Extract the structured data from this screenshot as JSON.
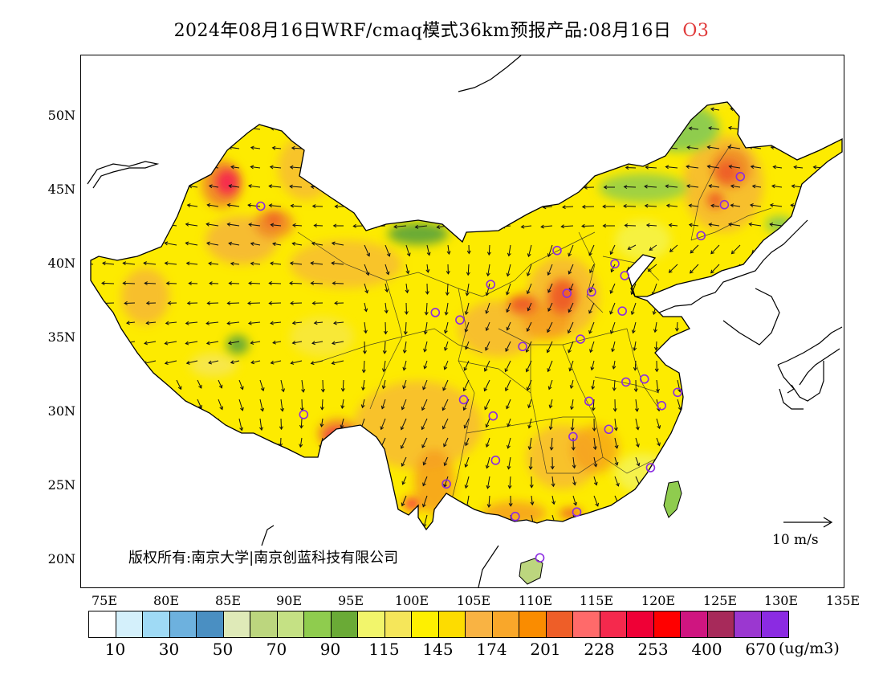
{
  "title": {
    "main": "2024年08月16日WRF/cmaq模式36km预报产品:08月16日",
    "species": "O3"
  },
  "axes": {
    "lat_labels": [
      "50N",
      "45N",
      "40N",
      "35N",
      "30N",
      "25N",
      "20N"
    ],
    "lon_labels": [
      "75E",
      "80E",
      "85E",
      "90E",
      "95E",
      "100E",
      "105E",
      "110E",
      "115E",
      "120E",
      "125E",
      "130E",
      "135E"
    ]
  },
  "map_view": {
    "lon_min": 73,
    "lon_max": 135,
    "lat_min": 18,
    "lat_max": 54
  },
  "copyright": "版权所有:南京大学|南京创蓝科技有限公司",
  "wind_reference": "10 m/s",
  "legend": {
    "colors": [
      "#ffffff",
      "#d4f0fb",
      "#9fdaf5",
      "#6db1de",
      "#4a8fc2",
      "#dfeab8",
      "#bcd67e",
      "#c5e184",
      "#8fcc4e",
      "#6aaa36",
      "#f2f56b",
      "#f5e65a",
      "#fef000",
      "#fddc00",
      "#f9b343",
      "#f9a72a",
      "#fa8c00",
      "#ee5e28",
      "#ff6a6a",
      "#f5294d",
      "#ef0036",
      "#ff0000",
      "#cf1580",
      "#a72a5a",
      "#9b37d0",
      "#8b2be2"
    ],
    "tick_labels": [
      "10",
      "30",
      "50",
      "70",
      "90",
      "115",
      "145",
      "174",
      "201",
      "228",
      "253",
      "400",
      "670"
    ],
    "unit": "(ug/m3)"
  },
  "stations": [
    {
      "lon": 87.6,
      "lat": 43.8
    },
    {
      "lon": 91.1,
      "lat": 29.7
    },
    {
      "lon": 101.8,
      "lat": 36.6
    },
    {
      "lon": 103.8,
      "lat": 36.1
    },
    {
      "lon": 106.3,
      "lat": 38.5
    },
    {
      "lon": 111.7,
      "lat": 40.8
    },
    {
      "lon": 112.5,
      "lat": 37.9
    },
    {
      "lon": 114.5,
      "lat": 38.0
    },
    {
      "lon": 116.4,
      "lat": 39.9
    },
    {
      "lon": 117.2,
      "lat": 39.1
    },
    {
      "lon": 117.0,
      "lat": 36.7
    },
    {
      "lon": 113.6,
      "lat": 34.8
    },
    {
      "lon": 108.9,
      "lat": 34.3
    },
    {
      "lon": 117.3,
      "lat": 31.9
    },
    {
      "lon": 118.8,
      "lat": 32.1
    },
    {
      "lon": 121.5,
      "lat": 31.2
    },
    {
      "lon": 120.2,
      "lat": 30.3
    },
    {
      "lon": 114.3,
      "lat": 30.6
    },
    {
      "lon": 113.0,
      "lat": 28.2
    },
    {
      "lon": 115.9,
      "lat": 28.7
    },
    {
      "lon": 119.3,
      "lat": 26.1
    },
    {
      "lon": 104.1,
      "lat": 30.7
    },
    {
      "lon": 106.5,
      "lat": 29.6
    },
    {
      "lon": 106.7,
      "lat": 26.6
    },
    {
      "lon": 102.7,
      "lat": 25.0
    },
    {
      "lon": 108.3,
      "lat": 22.8
    },
    {
      "lon": 113.3,
      "lat": 23.1
    },
    {
      "lon": 110.3,
      "lat": 20.0
    },
    {
      "lon": 126.6,
      "lat": 45.8
    },
    {
      "lon": 125.3,
      "lat": 43.9
    },
    {
      "lon": 123.4,
      "lat": 41.8
    }
  ]
}
